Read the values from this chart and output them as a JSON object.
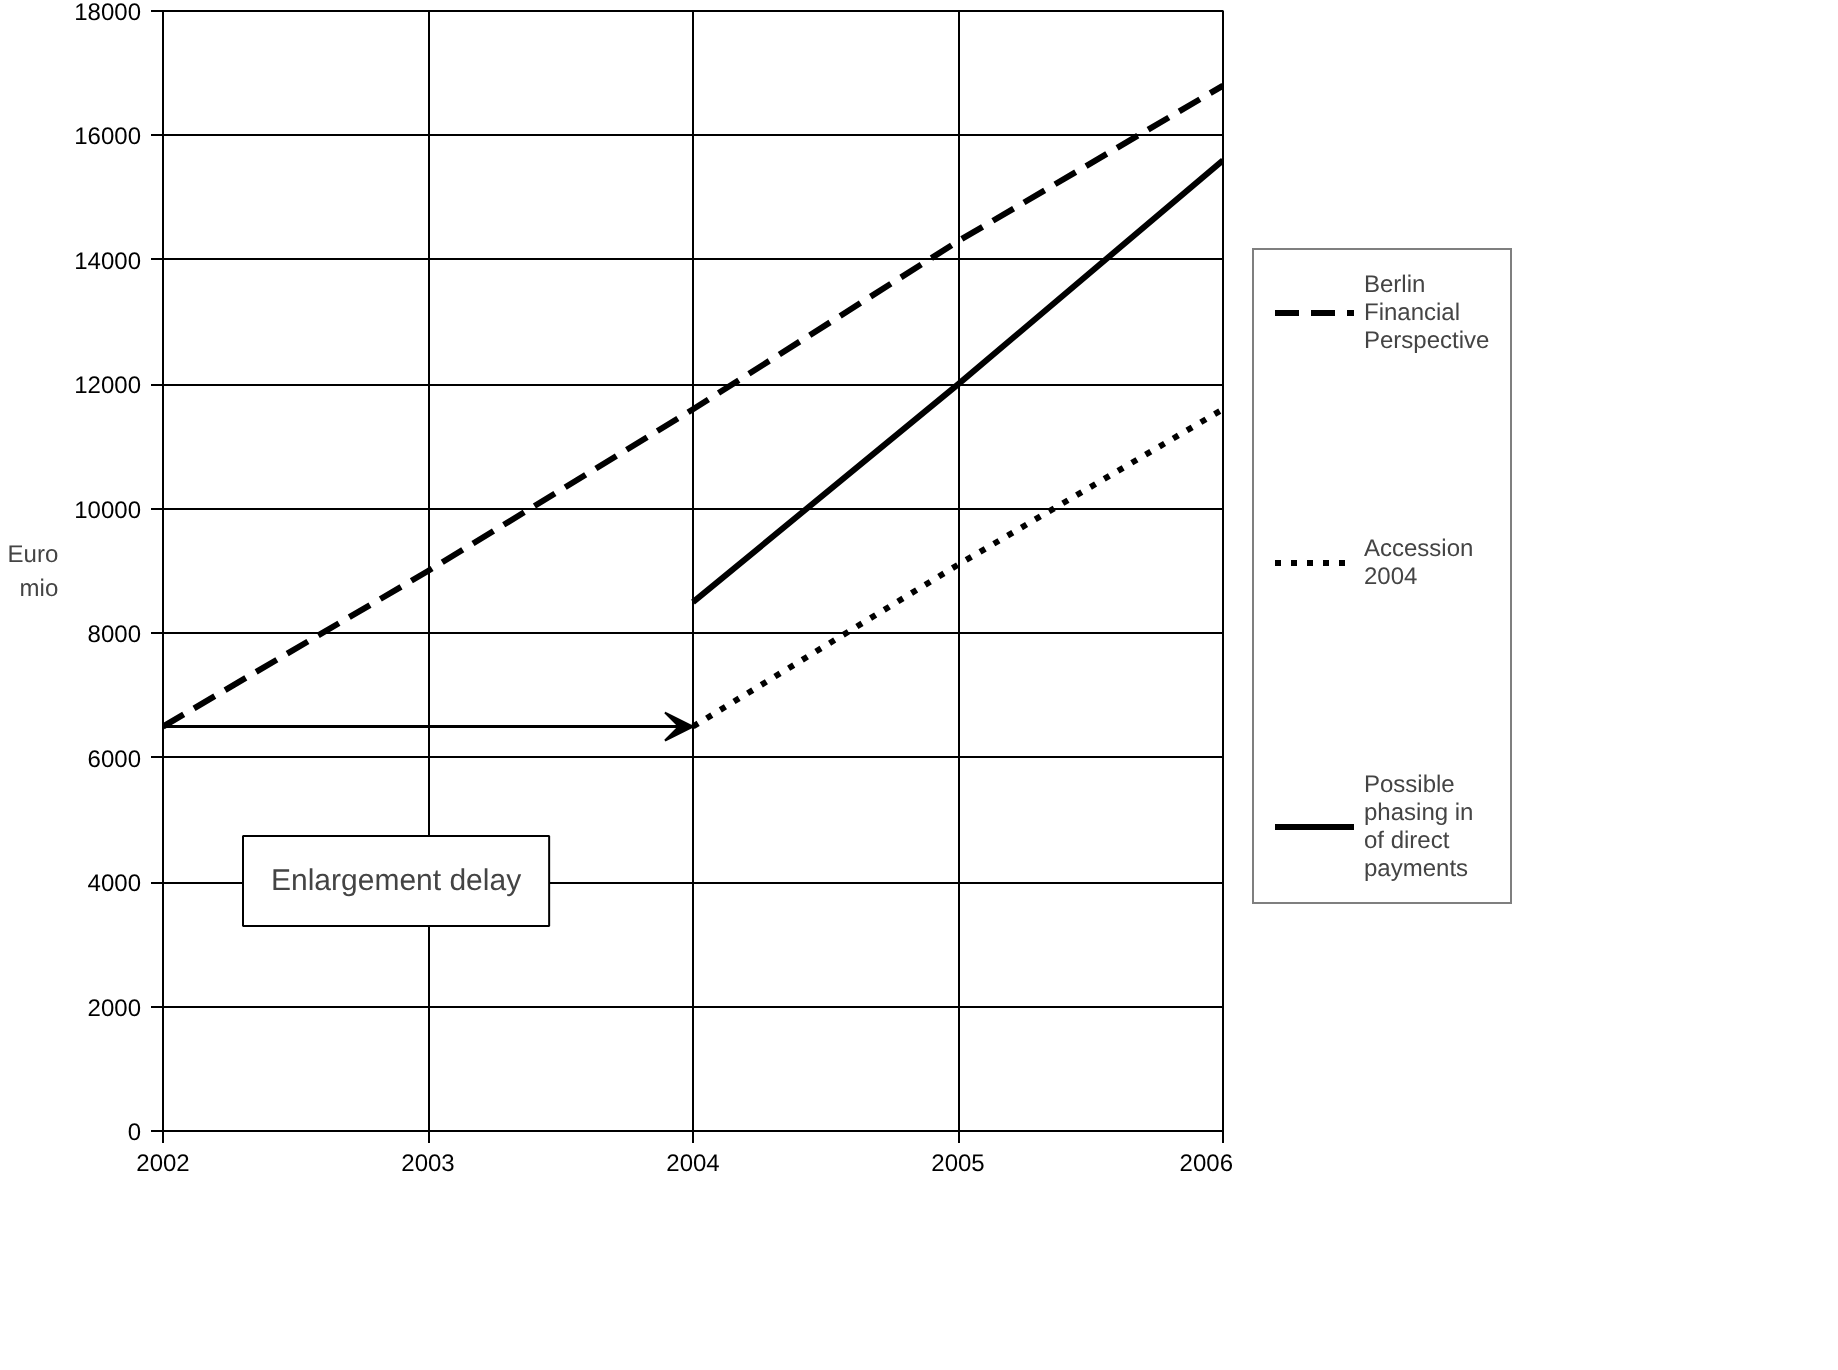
{
  "chart_data": {
    "type": "line",
    "ylabel": "Euro mio",
    "x": [
      2002,
      2003,
      2004,
      2005,
      2006
    ],
    "series": [
      {
        "name": "Berlin Financial Perspective",
        "color": "#000000",
        "line_style": "dashed",
        "values": [
          6500,
          9000,
          11600,
          14300,
          16800
        ]
      },
      {
        "name": "Accession 2004",
        "color": "#000000",
        "line_style": "dotted",
        "x": [
          2004,
          2005,
          2006
        ],
        "values": [
          6500,
          9100,
          11600
        ]
      },
      {
        "name": "Possible phasing in of direct payments",
        "color": "#000000",
        "line_style": "solid",
        "x": [
          2004,
          2005,
          2006
        ],
        "values": [
          8500,
          12000,
          15600
        ]
      }
    ],
    "xlim": [
      2002,
      2006
    ],
    "xticks": [
      2002,
      2003,
      2004,
      2005,
      2006
    ],
    "ylim": [
      0,
      18000
    ],
    "yticks": [
      0,
      2000,
      4000,
      6000,
      8000,
      10000,
      12000,
      14000,
      16000,
      18000
    ],
    "grid": true,
    "legend": "right",
    "marker": "none",
    "annotations": [
      "Enlargement delay"
    ]
  }
}
